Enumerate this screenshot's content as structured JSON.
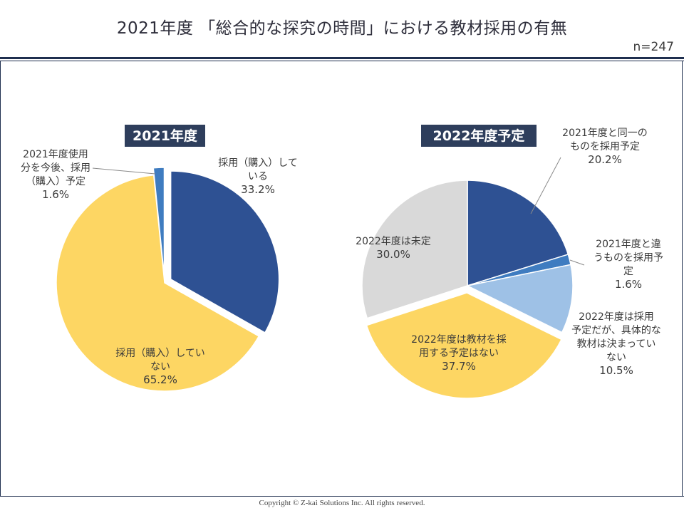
{
  "header": {
    "title": "2021年度 「総合的な探究の時間」における教材採用の有無",
    "sample_size": "n=247"
  },
  "footer": {
    "copyright": "Copyright © Z-kai Solutions Inc. All rights reserved."
  },
  "colors": {
    "dark_blue": "#2e5193",
    "mid_blue": "#3f7cc0",
    "light_blue": "#9ec1e6",
    "yellow": "#fdd663",
    "gray": "#d9d9d9",
    "title_box": "#2e3e5c"
  },
  "chart_data": [
    {
      "type": "pie",
      "title": "2021年度",
      "slices": [
        {
          "label": "採用（購入）している",
          "label_lines": [
            "採用（購入）して",
            "いる",
            "33.2%"
          ],
          "value": 33.2,
          "color": "#2e5193",
          "exploded": true
        },
        {
          "label": "採用（購入）していない",
          "label_lines": [
            "採用（購入）してい",
            "ない",
            "65.2%"
          ],
          "value": 65.2,
          "color": "#fdd663",
          "exploded": false
        },
        {
          "label": "2021年度使用分を今後、採用（購入）予定",
          "label_lines": [
            "2021年度使用",
            "分を今後、採用",
            "（購入）予定",
            "1.6%"
          ],
          "value": 1.6,
          "color": "#3f7cc0",
          "exploded": true
        }
      ]
    },
    {
      "type": "pie",
      "title": "2022年度予定",
      "slices": [
        {
          "label": "2021年度と同一のものを採用予定",
          "label_lines": [
            "2021年度と同一の",
            "ものを採用予定",
            "20.2%"
          ],
          "value": 20.2,
          "color": "#2e5193",
          "exploded": false
        },
        {
          "label": "2021年度と違うものを採用予定",
          "label_lines": [
            "2021年度と違",
            "うものを採用予",
            "定",
            "1.6%"
          ],
          "value": 1.6,
          "color": "#3f7cc0",
          "exploded": false
        },
        {
          "label": "2022年度は採用予定だが、具体的な教材は決まっていない",
          "label_lines": [
            "2022年度は採用",
            "予定だが、具体的な",
            "教材は決まってい",
            "ない",
            "10.5%"
          ],
          "value": 10.5,
          "color": "#9ec1e6",
          "exploded": false
        },
        {
          "label": "2022年度は教材を採用する予定はない",
          "label_lines": [
            "2022年度は教材を採",
            "用する予定はない",
            "37.7%"
          ],
          "value": 37.7,
          "color": "#fdd663",
          "exploded": true
        },
        {
          "label": "2022年度は未定",
          "label_lines": [
            "2022年度は未定",
            "30.0%"
          ],
          "value": 30.0,
          "color": "#d9d9d9",
          "exploded": false
        }
      ]
    }
  ]
}
